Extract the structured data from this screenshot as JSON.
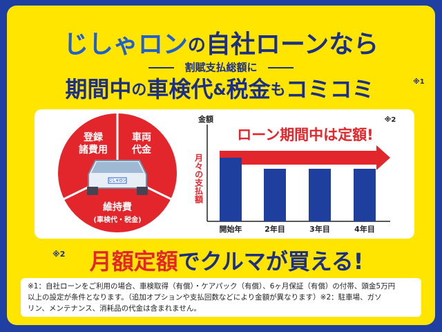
{
  "header": {
    "line1": [
      "じしゃロン",
      "の",
      "自社ローンなら"
    ],
    "line2": "割賦支払総額に",
    "line3": [
      "期間中",
      "の",
      "車検代",
      "&",
      "税金",
      "も",
      "コミコミ"
    ],
    "line3_note": "※1"
  },
  "pie": {
    "top_left": [
      "登録",
      "諸費用"
    ],
    "top_right": [
      "車両",
      "代金"
    ],
    "bottom": "維持費",
    "bottom_sub": "(車検代・税金)",
    "car_plate": "じしゃロン"
  },
  "chart": {
    "y_label": "金額",
    "note": "※2",
    "banner": "ローン期間中は定額!",
    "y_axis_text": "月々の支払額",
    "categories": [
      "開始年",
      "2年目",
      "3年目",
      "4年目"
    ]
  },
  "slogan": {
    "note": "※2",
    "parts": [
      "月額定額",
      "でクルマが買える!"
    ]
  },
  "footnote": [
    "※1：自社ローンをご利用の場合、車検取得（有償）・ケアパック（有償）、6ヶ月保証（有償）の付帯、頭金5万円",
    "以上の設定が条件となります。（追加オプションや支払回数などにより金額が異なります）※2：駐車場、ガソ",
    "リン、メンテナンス、消耗品の代金は含まれません。"
  ]
}
